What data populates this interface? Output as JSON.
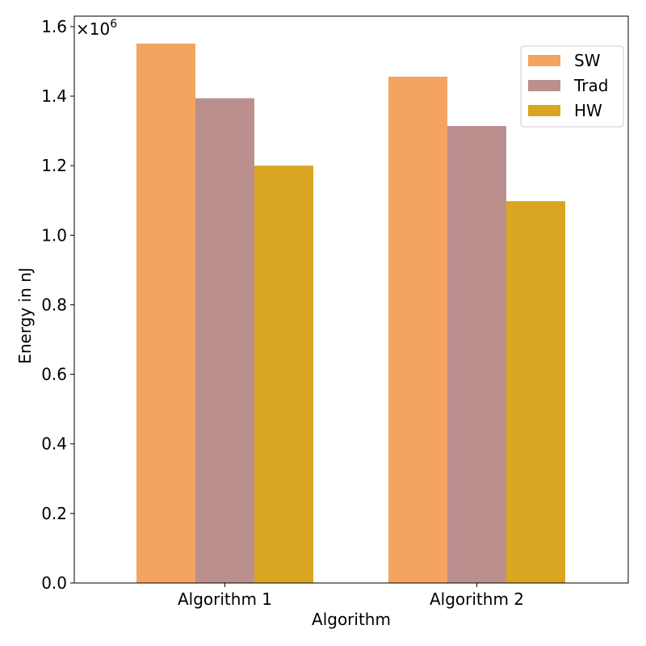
{
  "chart_data": {
    "type": "bar",
    "title": "",
    "xlabel": "Algorithm",
    "ylabel": "Energy in nJ",
    "categories": [
      "Algorithm 1",
      "Algorithm 2"
    ],
    "series": [
      {
        "name": "SW",
        "values": [
          1551000,
          1456000
        ],
        "color": "#f4a460"
      },
      {
        "name": "Trad",
        "values": [
          1394000,
          1314000
        ],
        "color": "#bc8f8f"
      },
      {
        "name": "HW",
        "values": [
          1200000,
          1098000
        ],
        "color": "#daa520"
      }
    ],
    "ylim": [
      0,
      1630000
    ],
    "yticks": [
      0,
      200000,
      400000,
      600000,
      800000,
      1000000,
      1200000,
      1400000,
      1600000
    ],
    "ytick_labels": [
      "0.0",
      "0.2",
      "0.4",
      "0.6",
      "0.8",
      "1.0",
      "1.2",
      "1.4",
      "1.6"
    ],
    "y_multiplier": {
      "base": "×10",
      "exponent": "6"
    },
    "legend_position": "top-right",
    "grid": false
  }
}
